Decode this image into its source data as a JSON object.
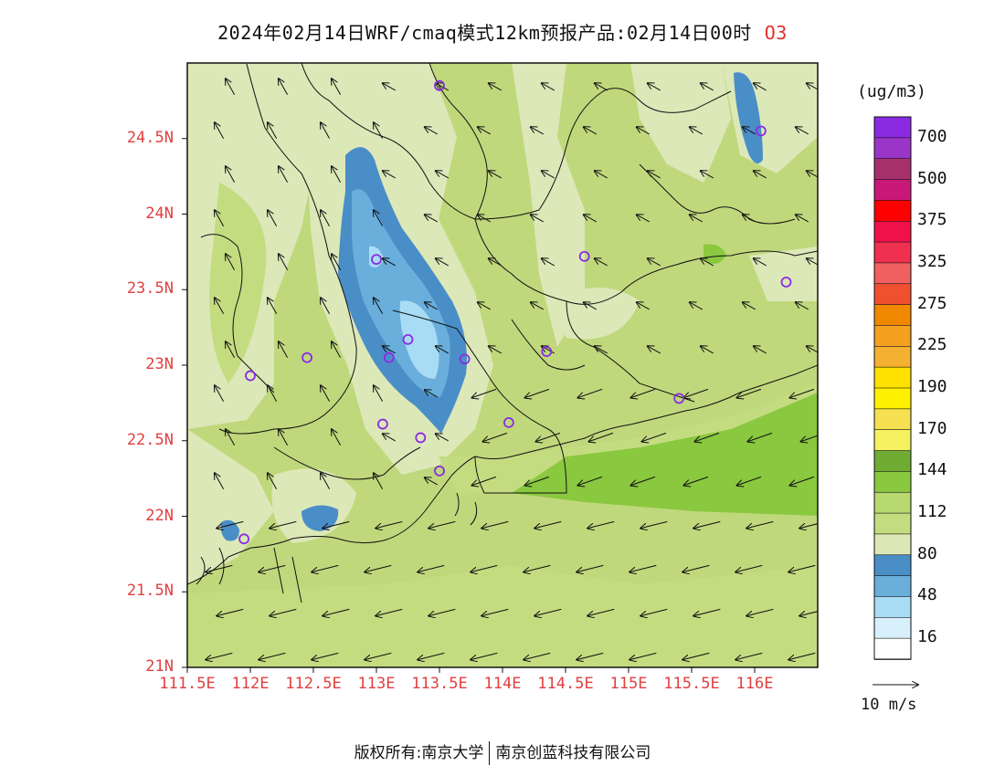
{
  "title": {
    "text": "2024年02月14日WRF/cmaq模式12km预报产品:02月14日00时",
    "species": "O3"
  },
  "axes": {
    "lat_labels": [
      "24.5N",
      "24N",
      "23.5N",
      "23N",
      "22.5N",
      "22N",
      "21.5N",
      "21N"
    ],
    "lat_values": [
      24.5,
      24,
      23.5,
      23,
      22.5,
      22,
      21.5,
      21
    ],
    "lon_labels": [
      "111.5E",
      "112E",
      "112.5E",
      "113E",
      "113.5E",
      "114E",
      "114.5E",
      "115E",
      "115.5E",
      "116E"
    ],
    "lon_values": [
      111.5,
      112,
      112.5,
      113,
      113.5,
      114,
      114.5,
      115,
      115.5,
      116
    ],
    "lon_range": [
      111.5,
      116.5
    ],
    "lat_range": [
      21,
      25
    ]
  },
  "legend": {
    "unit": "(ug/m3)",
    "labels": [
      "700",
      "500",
      "375",
      "325",
      "275",
      "225",
      "190",
      "170",
      "144",
      "112",
      "80",
      "48",
      "16"
    ],
    "colors_top_to_bottom": [
      "#8a2be2",
      "#9a35c8",
      "#a8306a",
      "#c81878",
      "#ff0000",
      "#f0104a",
      "#f03050",
      "#f06060",
      "#f05030",
      "#f08800",
      "#f4a020",
      "#f4b030",
      "#ffe000",
      "#fff000",
      "#f4e050",
      "#f4f060",
      "#70ab34",
      "#8ac840",
      "#b8d870",
      "#c4dc80",
      "#dce8b8",
      "#4a8ec8",
      "#6aaedc",
      "#a8dcf4",
      "#d8f0fc",
      "#ffffff"
    ]
  },
  "vector_legend": {
    "label": "10 m/s"
  },
  "monitoring_sites": [
    {
      "lon": 113.5,
      "lat": 24.85
    },
    {
      "lon": 116.05,
      "lat": 24.55
    },
    {
      "lon": 113.0,
      "lat": 23.7
    },
    {
      "lon": 114.65,
      "lat": 23.72
    },
    {
      "lon": 116.25,
      "lat": 23.55
    },
    {
      "lon": 112.45,
      "lat": 23.05
    },
    {
      "lon": 112.0,
      "lat": 22.93
    },
    {
      "lon": 113.25,
      "lat": 23.17
    },
    {
      "lon": 113.1,
      "lat": 23.05
    },
    {
      "lon": 113.7,
      "lat": 23.04
    },
    {
      "lon": 114.35,
      "lat": 23.09
    },
    {
      "lon": 115.4,
      "lat": 22.78
    },
    {
      "lon": 113.05,
      "lat": 22.61
    },
    {
      "lon": 113.35,
      "lat": 22.52
    },
    {
      "lon": 114.05,
      "lat": 22.62
    },
    {
      "lon": 113.5,
      "lat": 22.3
    },
    {
      "lon": 111.95,
      "lat": 21.85
    }
  ],
  "footer": {
    "left": "版权所有:南京大学",
    "right": "南京创蓝科技有限公司"
  }
}
